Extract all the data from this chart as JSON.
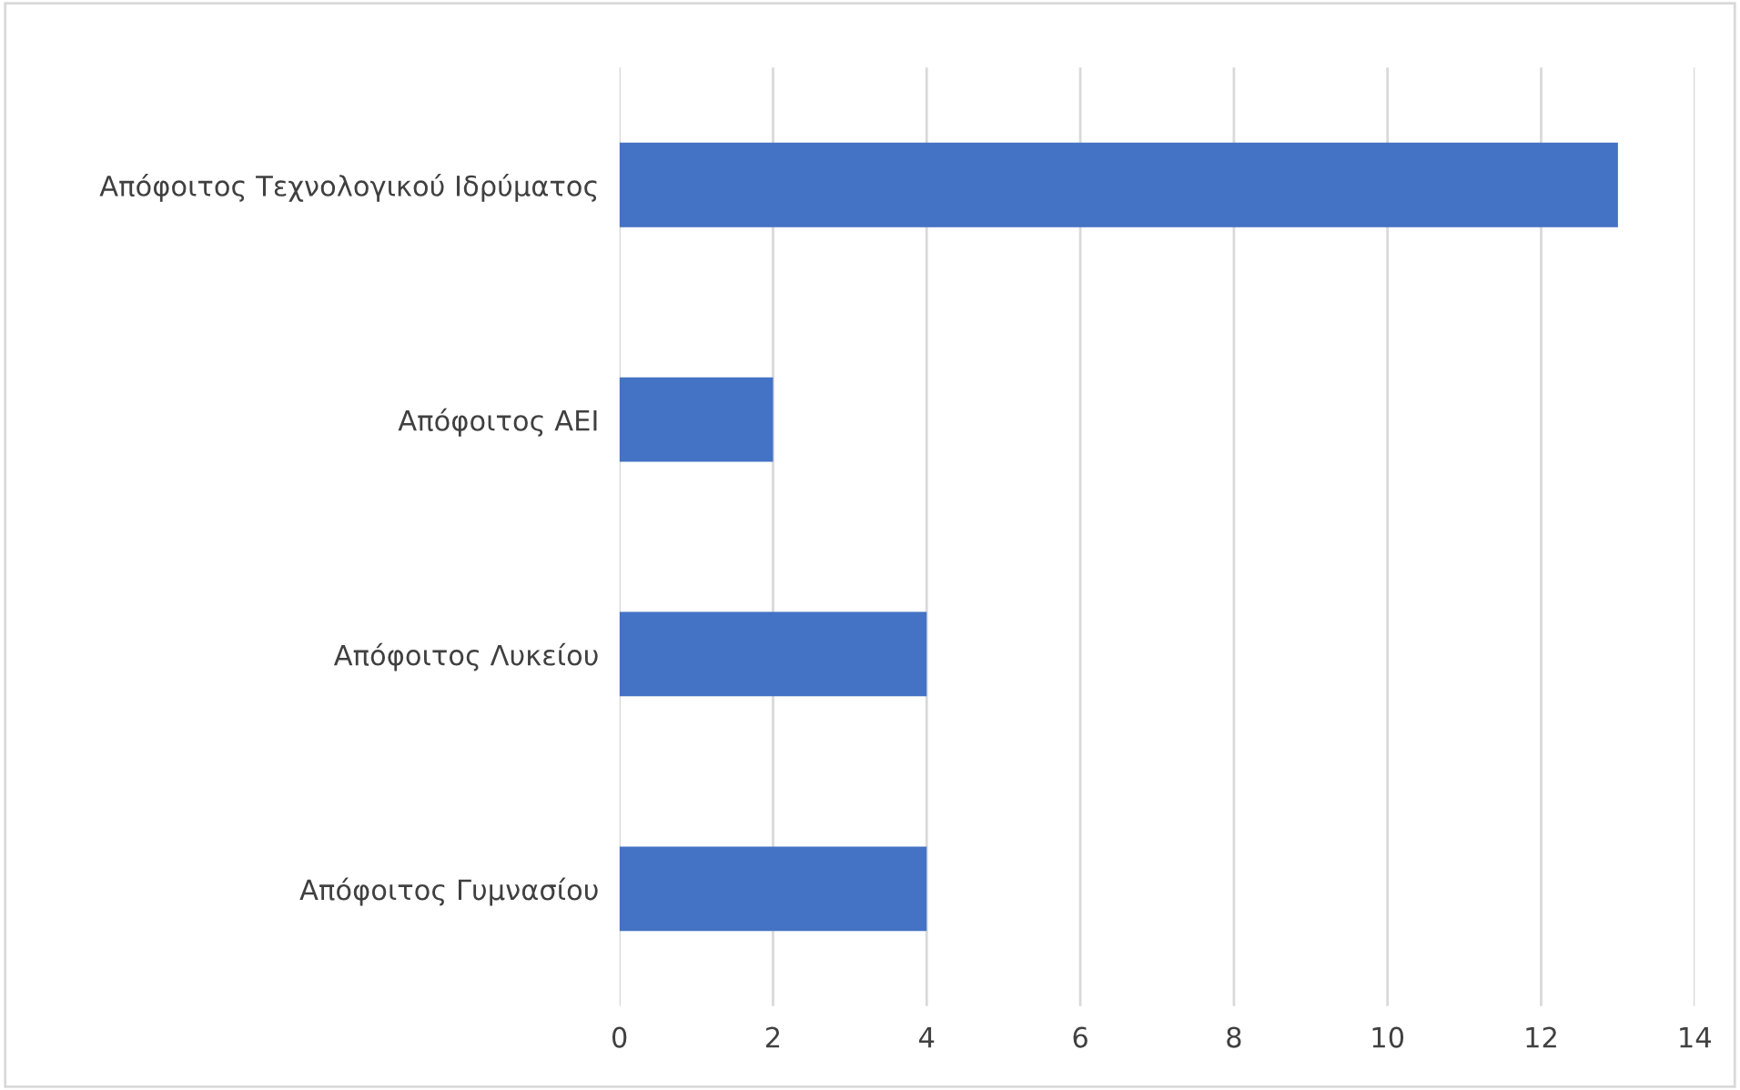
{
  "chart_data": {
    "type": "bar",
    "orientation": "horizontal",
    "categories": [
      "Απόφοιτος Τεχνολογικού Ιδρύματος",
      "Απόφοιτος ΑΕΙ",
      "Απόφοιτος Λυκείου",
      "Απόφοιτος Γυμνασίου"
    ],
    "values": [
      13,
      2,
      4,
      4
    ],
    "color": "#4472c4",
    "xlim": [
      0,
      14
    ],
    "xticks": [
      0,
      2,
      4,
      6,
      8,
      10,
      12,
      14
    ],
    "grid": "x",
    "legend": false
  }
}
